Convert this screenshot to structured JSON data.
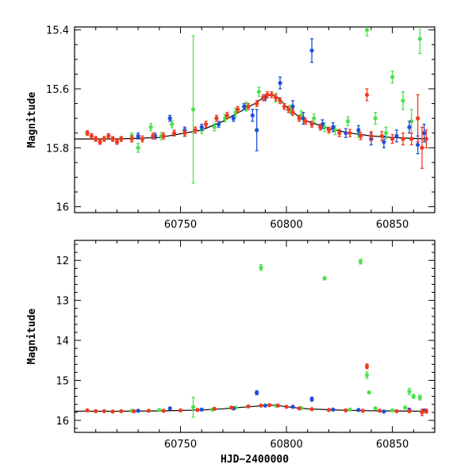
{
  "chart_data": [
    {
      "type": "scatter",
      "title": "",
      "xlabel": "",
      "ylabel": "Magnitude",
      "xlim": [
        60700,
        60870
      ],
      "ylim": [
        15.39,
        16.02
      ],
      "y_inverted": true,
      "xticks": [
        60750,
        60800,
        60850
      ],
      "yticks": [
        15.4,
        15.6,
        15.8,
        16
      ],
      "ytick_labels": [
        "15.4",
        "15.6",
        "15.8",
        "16"
      ],
      "grid": false,
      "colors": {
        "blue": "#1f4fdb",
        "green": "#4ee04e",
        "red": "#f03a1e",
        "model": "#000000"
      },
      "model": {
        "x": [
          60700,
          60720,
          60740,
          60760,
          60770,
          60780,
          60785,
          60790,
          60793,
          60796,
          60800,
          60805,
          60810,
          60820,
          60830,
          60840,
          60850,
          60866
        ],
        "y": [
          15.77,
          15.77,
          15.765,
          15.74,
          15.71,
          15.67,
          15.65,
          15.625,
          15.62,
          15.63,
          15.66,
          15.69,
          15.71,
          15.735,
          15.75,
          15.76,
          15.765,
          15.77
        ]
      },
      "series": [
        {
          "color": "red",
          "x": [
            60706,
            60708,
            60710,
            60712,
            60714,
            60716,
            60718,
            60720,
            60722,
            60727,
            60732,
            60737,
            60742,
            60747,
            60752,
            60757,
            60762,
            60767,
            60772,
            60777,
            60782,
            60786,
            60789,
            60791,
            60793,
            60795,
            60797,
            60799,
            60801,
            60803,
            60806,
            60809,
            60812,
            60816,
            60820,
            60825,
            60830,
            60835,
            60838,
            60840,
            60845,
            60850,
            60855,
            60859,
            60862,
            60864,
            60866
          ],
          "y": [
            15.75,
            15.76,
            15.77,
            15.78,
            15.77,
            15.76,
            15.77,
            15.78,
            15.77,
            15.77,
            15.77,
            15.76,
            15.76,
            15.75,
            15.75,
            15.74,
            15.72,
            15.7,
            15.69,
            15.67,
            15.66,
            15.65,
            15.63,
            15.62,
            15.62,
            15.63,
            15.64,
            15.66,
            15.67,
            15.68,
            15.7,
            15.71,
            15.72,
            15.73,
            15.74,
            15.75,
            15.75,
            15.76,
            15.62,
            15.76,
            15.76,
            15.77,
            15.77,
            15.77,
            15.7,
            15.8,
            15.77
          ],
          "err": [
            0.008,
            0.008,
            0.008,
            0.008,
            0.008,
            0.008,
            0.008,
            0.008,
            0.008,
            0.01,
            0.01,
            0.01,
            0.01,
            0.01,
            0.01,
            0.01,
            0.01,
            0.01,
            0.01,
            0.01,
            0.01,
            0.01,
            0.01,
            0.01,
            0.01,
            0.01,
            0.01,
            0.01,
            0.01,
            0.01,
            0.01,
            0.01,
            0.01,
            0.01,
            0.01,
            0.012,
            0.012,
            0.012,
            0.02,
            0.015,
            0.015,
            0.015,
            0.02,
            0.02,
            0.08,
            0.07,
            0.03
          ]
        },
        {
          "color": "blue",
          "x": [
            60730,
            60738,
            60745,
            60752,
            60760,
            60768,
            60775,
            60780,
            60784,
            60786,
            60790,
            60797,
            60803,
            60808,
            60812,
            60817,
            60822,
            60828,
            60834,
            60840,
            60846,
            60852,
            60858,
            60862,
            60865
          ],
          "y": [
            15.76,
            15.76,
            15.7,
            15.74,
            15.73,
            15.72,
            15.7,
            15.66,
            15.69,
            15.74,
            15.63,
            15.58,
            15.66,
            15.7,
            15.47,
            15.72,
            15.73,
            15.75,
            15.74,
            15.77,
            15.78,
            15.76,
            15.73,
            15.79,
            15.75
          ],
          "err": [
            0.01,
            0.01,
            0.01,
            0.01,
            0.01,
            0.01,
            0.01,
            0.01,
            0.02,
            0.07,
            0.01,
            0.02,
            0.02,
            0.02,
            0.04,
            0.015,
            0.015,
            0.015,
            0.015,
            0.02,
            0.02,
            0.02,
            0.02,
            0.03,
            0.03
          ]
        },
        {
          "color": "green",
          "x": [
            60727,
            60730,
            60736,
            60741,
            60746,
            60752,
            60756,
            60760,
            60766,
            60771,
            60776,
            60781,
            60787,
            60795,
            60802,
            60807,
            60813,
            60818,
            60823,
            60829,
            60834,
            60838,
            60842,
            60847,
            60850,
            60855,
            60859,
            60863
          ],
          "y": [
            15.76,
            15.8,
            15.73,
            15.76,
            15.72,
            15.75,
            15.67,
            15.74,
            15.73,
            15.7,
            15.68,
            15.66,
            15.61,
            15.63,
            15.67,
            15.69,
            15.7,
            15.73,
            15.74,
            15.71,
            15.75,
            15.4,
            15.7,
            15.75,
            15.56,
            15.64,
            15.71,
            15.43
          ],
          "err": [
            0.01,
            0.015,
            0.012,
            0.012,
            0.012,
            0.012,
            0.25,
            0.012,
            0.012,
            0.012,
            0.015,
            0.015,
            0.015,
            0.015,
            0.015,
            0.015,
            0.015,
            0.015,
            0.015,
            0.015,
            0.015,
            0.02,
            0.02,
            0.02,
            0.02,
            0.03,
            0.04,
            0.05
          ]
        }
      ]
    },
    {
      "type": "scatter",
      "title": "",
      "xlabel": "HJD−2400000",
      "ylabel": "Magnitude",
      "xlim": [
        60700,
        60870
      ],
      "ylim": [
        11.5,
        16.3
      ],
      "y_inverted": true,
      "xticks": [
        60750,
        60800,
        60850
      ],
      "yticks": [
        12,
        13,
        14,
        15,
        16
      ],
      "ytick_labels": [
        "12",
        "13",
        "14",
        "15",
        "16"
      ],
      "grid": false,
      "colors": {
        "blue": "#1f4fdb",
        "green": "#4ee04e",
        "red": "#f03a1e",
        "model": "#000000"
      },
      "model": {
        "x": [
          60700,
          60720,
          60740,
          60760,
          60770,
          60780,
          60785,
          60790,
          60793,
          60796,
          60800,
          60805,
          60810,
          60820,
          60830,
          60840,
          60850,
          60866
        ],
        "y": [
          15.77,
          15.77,
          15.765,
          15.74,
          15.71,
          15.67,
          15.65,
          15.625,
          15.62,
          15.63,
          15.66,
          15.69,
          15.71,
          15.735,
          15.75,
          15.76,
          15.765,
          15.77
        ]
      },
      "series": [
        {
          "color": "red",
          "x": [
            60706,
            60710,
            60714,
            60718,
            60722,
            60728,
            60735,
            60742,
            60750,
            60758,
            60766,
            60774,
            60782,
            60788,
            60792,
            60796,
            60800,
            60806,
            60812,
            60820,
            60828,
            60836,
            60838,
            60844,
            60852,
            60858,
            60864,
            60866
          ],
          "y": [
            15.75,
            15.77,
            15.77,
            15.78,
            15.77,
            15.77,
            15.76,
            15.76,
            15.75,
            15.74,
            15.71,
            15.68,
            15.65,
            15.63,
            15.62,
            15.63,
            15.66,
            15.7,
            15.72,
            15.74,
            15.75,
            15.76,
            14.65,
            15.76,
            15.77,
            15.77,
            15.8,
            15.77
          ],
          "err": [
            0.02,
            0.02,
            0.02,
            0.02,
            0.02,
            0.02,
            0.02,
            0.02,
            0.02,
            0.02,
            0.02,
            0.02,
            0.02,
            0.02,
            0.02,
            0.02,
            0.02,
            0.02,
            0.02,
            0.02,
            0.02,
            0.02,
            0.06,
            0.02,
            0.02,
            0.03,
            0.08,
            0.05
          ]
        },
        {
          "color": "blue",
          "x": [
            60730,
            60745,
            60760,
            60775,
            60786,
            60790,
            60803,
            60812,
            60822,
            60834,
            60846,
            60858,
            60865
          ],
          "y": [
            15.76,
            15.7,
            15.73,
            15.7,
            15.31,
            15.63,
            15.66,
            15.47,
            15.73,
            15.74,
            15.78,
            15.73,
            15.75
          ],
          "err": [
            0.02,
            0.02,
            0.02,
            0.02,
            0.05,
            0.02,
            0.02,
            0.05,
            0.02,
            0.02,
            0.02,
            0.02,
            0.03
          ]
        },
        {
          "color": "green",
          "x": [
            60727,
            60740,
            60756,
            60765,
            60776,
            60788,
            60795,
            60807,
            60818,
            60830,
            60835,
            60838,
            60839,
            60842,
            60850,
            60856,
            60858,
            60860,
            60863
          ],
          "y": [
            15.76,
            15.74,
            15.67,
            15.73,
            15.68,
            12.18,
            15.63,
            15.69,
            12.45,
            15.73,
            12.03,
            14.87,
            15.3,
            15.7,
            15.75,
            15.68,
            15.28,
            15.4,
            15.43
          ],
          "err": [
            0.02,
            0.02,
            0.25,
            0.02,
            0.02,
            0.07,
            0.02,
            0.02,
            0.04,
            0.02,
            0.06,
            0.08,
            0.03,
            0.02,
            0.02,
            0.02,
            0.08,
            0.05,
            0.06
          ]
        }
      ]
    }
  ]
}
